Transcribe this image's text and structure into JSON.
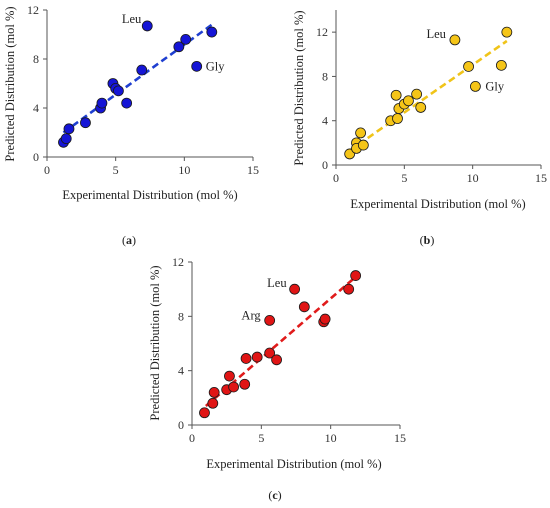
{
  "chart_data": [
    {
      "type": "scatter",
      "panel_label": "a",
      "xlabel": "Experimental Distribution (mol %)",
      "ylabel": "Predicted Distribution (mol %)",
      "xlim": [
        0,
        15
      ],
      "ylim": [
        0,
        12
      ],
      "xticks": [
        0,
        5,
        10,
        15
      ],
      "yticks": [
        0,
        4,
        8,
        12
      ],
      "marker_color": "#1515d6",
      "trendline_color": "#1f3fd0",
      "trendline": {
        "x": [
          1.2,
          12.0
        ],
        "y": [
          2.0,
          10.8
        ]
      },
      "points": [
        {
          "x": 1.2,
          "y": 1.2
        },
        {
          "x": 1.4,
          "y": 1.5
        },
        {
          "x": 1.6,
          "y": 2.3
        },
        {
          "x": 2.8,
          "y": 2.8
        },
        {
          "x": 3.9,
          "y": 4.0
        },
        {
          "x": 4.0,
          "y": 4.4
        },
        {
          "x": 4.8,
          "y": 6.0
        },
        {
          "x": 5.0,
          "y": 5.6
        },
        {
          "x": 5.2,
          "y": 5.4
        },
        {
          "x": 5.8,
          "y": 4.4
        },
        {
          "x": 6.9,
          "y": 7.1
        },
        {
          "x": 7.3,
          "y": 10.7
        },
        {
          "x": 9.6,
          "y": 9.0
        },
        {
          "x": 10.1,
          "y": 9.6
        },
        {
          "x": 10.9,
          "y": 7.4
        },
        {
          "x": 12.0,
          "y": 10.2
        }
      ],
      "annotations": [
        {
          "text": "Leu",
          "x": 7.3,
          "y": 10.7
        },
        {
          "text": "Gly",
          "x": 10.9,
          "y": 7.4
        }
      ]
    },
    {
      "type": "scatter",
      "panel_label": "b",
      "xlabel": "Experimental Distribution (mol %)",
      "ylabel": "Predicted Distribution (mol %)",
      "xlim": [
        0,
        15
      ],
      "ylim": [
        0,
        14
      ],
      "xticks": [
        0,
        5,
        10,
        15
      ],
      "yticks": [
        0,
        4,
        8,
        12
      ],
      "marker_color": "#f5c518",
      "trendline_color": "#f0c419",
      "trendline": {
        "x": [
          1.0,
          12.5
        ],
        "y": [
          1.3,
          11.2
        ]
      },
      "points": [
        {
          "x": 1.0,
          "y": 1.0
        },
        {
          "x": 1.5,
          "y": 2.0
        },
        {
          "x": 1.5,
          "y": 1.5
        },
        {
          "x": 1.8,
          "y": 2.9
        },
        {
          "x": 2.0,
          "y": 1.8
        },
        {
          "x": 4.0,
          "y": 4.0
        },
        {
          "x": 4.4,
          "y": 6.3
        },
        {
          "x": 4.5,
          "y": 4.2
        },
        {
          "x": 4.6,
          "y": 5.1
        },
        {
          "x": 5.0,
          "y": 5.5
        },
        {
          "x": 5.3,
          "y": 5.8
        },
        {
          "x": 5.9,
          "y": 6.4
        },
        {
          "x": 6.2,
          "y": 5.2
        },
        {
          "x": 8.7,
          "y": 11.3
        },
        {
          "x": 9.7,
          "y": 8.9
        },
        {
          "x": 10.2,
          "y": 7.1
        },
        {
          "x": 12.1,
          "y": 9.0
        },
        {
          "x": 12.5,
          "y": 12.0
        }
      ],
      "annotations": [
        {
          "text": "Leu",
          "x": 8.7,
          "y": 11.3
        },
        {
          "text": "Gly",
          "x": 10.2,
          "y": 7.1
        }
      ]
    },
    {
      "type": "scatter",
      "panel_label": "c",
      "xlabel": "Experimental Distribution (mol %)",
      "ylabel": "Predicted Distribution (mol %)",
      "xlim": [
        0,
        15
      ],
      "ylim": [
        0,
        12
      ],
      "xticks": [
        0,
        5,
        10,
        15
      ],
      "yticks": [
        0,
        4,
        8,
        12
      ],
      "marker_color": "#e01515",
      "trendline_color": "#e01b1b",
      "trendline": {
        "x": [
          1.0,
          11.8
        ],
        "y": [
          1.4,
          10.9
        ]
      },
      "points": [
        {
          "x": 0.9,
          "y": 0.9
        },
        {
          "x": 1.5,
          "y": 1.6
        },
        {
          "x": 1.6,
          "y": 2.4
        },
        {
          "x": 2.5,
          "y": 2.6
        },
        {
          "x": 2.7,
          "y": 3.6
        },
        {
          "x": 3.0,
          "y": 2.8
        },
        {
          "x": 3.8,
          "y": 3.0
        },
        {
          "x": 3.9,
          "y": 4.9
        },
        {
          "x": 4.7,
          "y": 5.0
        },
        {
          "x": 5.6,
          "y": 5.3
        },
        {
          "x": 5.6,
          "y": 7.7
        },
        {
          "x": 6.1,
          "y": 4.8
        },
        {
          "x": 7.4,
          "y": 10.0
        },
        {
          "x": 8.1,
          "y": 8.7
        },
        {
          "x": 9.5,
          "y": 7.6
        },
        {
          "x": 9.6,
          "y": 7.8
        },
        {
          "x": 11.3,
          "y": 10.0
        },
        {
          "x": 11.8,
          "y": 11.0
        }
      ],
      "annotations": [
        {
          "text": "Leu",
          "x": 7.4,
          "y": 10.0
        },
        {
          "text": "Arg",
          "x": 5.6,
          "y": 7.7
        }
      ]
    }
  ]
}
